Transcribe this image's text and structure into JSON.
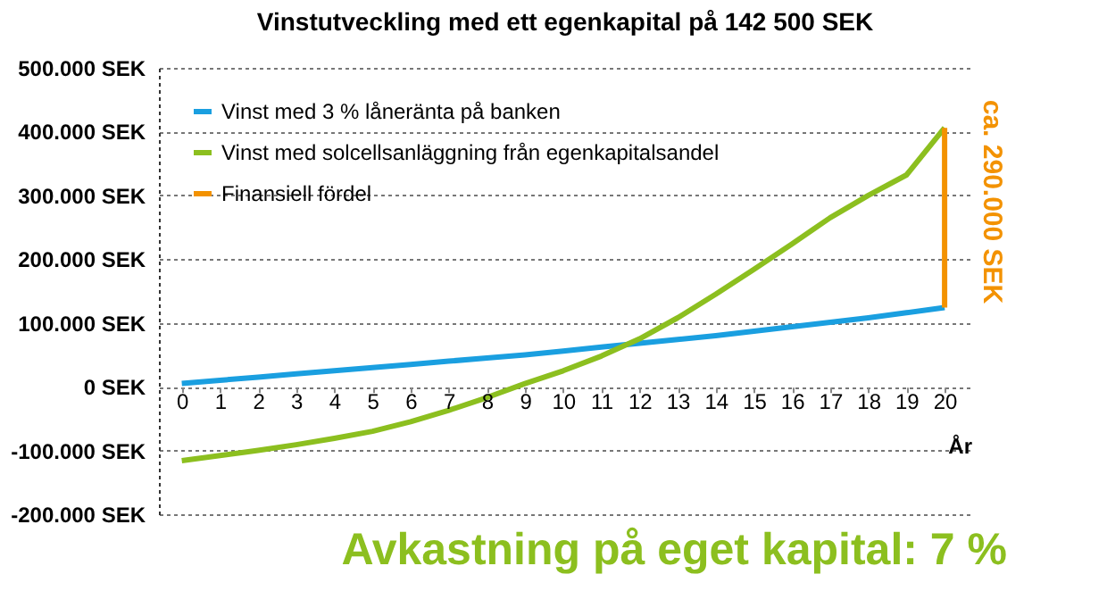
{
  "chart_data": {
    "type": "line",
    "title": "Vinstutveckling med ett egenkapital på 142 500 SEK",
    "xlabel": "År",
    "x": [
      0,
      1,
      2,
      3,
      4,
      5,
      6,
      7,
      8,
      9,
      10,
      11,
      12,
      13,
      14,
      15,
      16,
      17,
      18,
      19,
      20
    ],
    "series": [
      {
        "name": "Vinst med 3 % låneränta på banken",
        "color": "#1a9fe0",
        "values": [
          5000,
          10000,
          15000,
          20000,
          25000,
          30000,
          35000,
          40000,
          45000,
          50000,
          56000,
          62000,
          68000,
          74000,
          80000,
          87000,
          94000,
          101000,
          108000,
          116000,
          124000
        ]
      },
      {
        "name": "Vinst med solcellsanläggning från egenkapitalsandel",
        "color": "#8cbf1f",
        "values": [
          -116000,
          -108000,
          -100000,
          -91000,
          -81000,
          -70000,
          -55000,
          -37000,
          -17000,
          5000,
          25000,
          48000,
          75000,
          108000,
          145000,
          184000,
          224000,
          265000,
          300000,
          332000,
          406000
        ]
      },
      {
        "name": "Finansiell fördel",
        "color": "#f39200",
        "x": [
          20,
          20
        ],
        "values": [
          124000,
          406000
        ]
      }
    ],
    "xlim": [
      -0.6,
      20.7
    ],
    "xticks": [
      0,
      1,
      2,
      3,
      4,
      5,
      6,
      7,
      8,
      9,
      10,
      11,
      12,
      13,
      14,
      15,
      16,
      17,
      18,
      19,
      20
    ],
    "ylim": [
      -200000,
      500000
    ],
    "yticks": [
      {
        "value": -200000,
        "label": "-200.000 SEK"
      },
      {
        "value": -100000,
        "label": "-100.000 SEK"
      },
      {
        "value": 0,
        "label": "0 SEK"
      },
      {
        "value": 100000,
        "label": "100.000 SEK"
      },
      {
        "value": 200000,
        "label": "200.000 SEK"
      },
      {
        "value": 300000,
        "label": "300.000 SEK"
      },
      {
        "value": 400000,
        "label": "400.000 SEK"
      },
      {
        "value": 500000,
        "label": "500.000 SEK"
      }
    ],
    "grid": "y",
    "legend": "top left",
    "annotations": [
      "ca. 290.000 SEK",
      "Avkastning på eget kapital: 7 %"
    ]
  }
}
